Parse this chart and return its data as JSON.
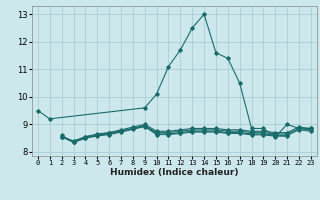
{
  "xlabel": "Humidex (Indice chaleur)",
  "ylabel": "",
  "background_color": "#cce8ec",
  "grid_color": "#aacdd4",
  "line_color": "#1a6b6b",
  "xlim": [
    -0.5,
    23.5
  ],
  "ylim": [
    7.85,
    13.3
  ],
  "yticks": [
    8,
    9,
    10,
    11,
    12,
    13
  ],
  "xticks": [
    0,
    1,
    2,
    3,
    4,
    5,
    6,
    7,
    8,
    9,
    10,
    11,
    12,
    13,
    14,
    15,
    16,
    17,
    18,
    19,
    20,
    21,
    22,
    23
  ],
  "series": [
    {
      "x": [
        0,
        1,
        9,
        10,
        11,
        12,
        13,
        14,
        15,
        16,
        17,
        18,
        19,
        20,
        21,
        22,
        23
      ],
      "y": [
        9.5,
        9.2,
        9.6,
        10.1,
        11.1,
        11.7,
        12.5,
        13.0,
        11.6,
        11.4,
        10.5,
        8.85,
        8.85,
        8.55,
        9.0,
        8.85,
        8.85
      ]
    },
    {
      "x": [
        2,
        3,
        4,
        5,
        6,
        7,
        8,
        9,
        10,
        11,
        12,
        13,
        14,
        15,
        16,
        17,
        18,
        19,
        20,
        21,
        22,
        23
      ],
      "y": [
        8.55,
        8.4,
        8.55,
        8.6,
        8.7,
        8.75,
        8.85,
        8.95,
        8.7,
        8.7,
        8.75,
        8.8,
        8.8,
        8.8,
        8.75,
        8.75,
        8.7,
        8.7,
        8.65,
        8.65,
        8.85,
        8.8
      ]
    },
    {
      "x": [
        2,
        3,
        4,
        5,
        6,
        7,
        8,
        9,
        10,
        11,
        12,
        13,
        14,
        15,
        16,
        17,
        18,
        19,
        20,
        21,
        22,
        23
      ],
      "y": [
        8.6,
        8.35,
        8.55,
        8.65,
        8.7,
        8.8,
        8.9,
        9.0,
        8.75,
        8.75,
        8.8,
        8.85,
        8.85,
        8.85,
        8.8,
        8.8,
        8.75,
        8.75,
        8.7,
        8.7,
        8.9,
        8.85
      ]
    },
    {
      "x": [
        2,
        3,
        4,
        5,
        6,
        7,
        8,
        9,
        10,
        11,
        12,
        13,
        14,
        15,
        16,
        17,
        18,
        19,
        20,
        21,
        22,
        23
      ],
      "y": [
        8.55,
        8.35,
        8.5,
        8.6,
        8.65,
        8.75,
        8.85,
        8.95,
        8.65,
        8.65,
        8.7,
        8.75,
        8.75,
        8.75,
        8.7,
        8.7,
        8.65,
        8.65,
        8.6,
        8.6,
        8.8,
        8.75
      ]
    },
    {
      "x": [
        2,
        3,
        4,
        5,
        6,
        7,
        8,
        9,
        10,
        11,
        12,
        13,
        14,
        15,
        16,
        17,
        18,
        19,
        20,
        21
      ],
      "y": [
        8.55,
        8.35,
        8.5,
        8.58,
        8.63,
        8.72,
        8.82,
        8.92,
        8.63,
        8.63,
        8.67,
        8.72,
        8.72,
        8.72,
        8.67,
        8.67,
        8.62,
        8.62,
        8.57,
        8.57
      ]
    }
  ]
}
